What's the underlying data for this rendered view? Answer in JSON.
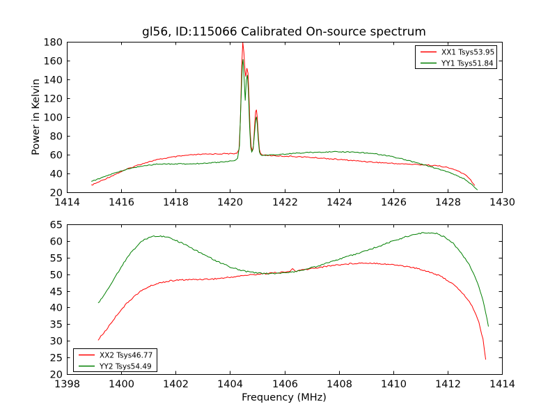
{
  "title": "gl56, ID:115066 Calibrated On-source spectrum",
  "colors": {
    "xx_polarization": "#ff0000",
    "yy_polarization": "#007f00",
    "frame": "#000000",
    "background": "#ffffff"
  },
  "chart_data": [
    {
      "type": "line",
      "title": "gl56, ID:115066 Calibrated On-source spectrum",
      "xlabel": "",
      "ylabel": "Power in Kelvin",
      "xlim": [
        1414,
        1430
      ],
      "ylim": [
        20,
        180
      ],
      "xticks": [
        1414,
        1416,
        1418,
        1420,
        1422,
        1424,
        1426,
        1428,
        1430
      ],
      "yticks": [
        20,
        40,
        60,
        80,
        100,
        120,
        140,
        160,
        180
      ],
      "grid": false,
      "legend_position": "upper right",
      "series": [
        {
          "name": "XX1",
          "label": "XX1 Tsys53.95",
          "color": "#ff0000",
          "noise": 0.55,
          "points": [
            [
              1414.9,
              27.5
            ],
            [
              1415.1,
              30.0
            ],
            [
              1415.4,
              34.0
            ],
            [
              1415.7,
              38.0
            ],
            [
              1416.0,
              42.0
            ],
            [
              1416.3,
              45.5
            ],
            [
              1416.6,
              48.8
            ],
            [
              1416.9,
              51.5
            ],
            [
              1417.2,
              53.8
            ],
            [
              1417.5,
              55.6
            ],
            [
              1417.8,
              57.0
            ],
            [
              1418.1,
              58.2
            ],
            [
              1418.4,
              59.2
            ],
            [
              1418.7,
              59.9
            ],
            [
              1419.0,
              60.4
            ],
            [
              1419.4,
              60.8
            ],
            [
              1419.8,
              61.0
            ],
            [
              1420.1,
              61.0
            ],
            [
              1420.25,
              61.5
            ],
            [
              1420.33,
              66.0
            ],
            [
              1420.38,
              95.0
            ],
            [
              1420.43,
              155.0
            ],
            [
              1420.47,
              179.0
            ],
            [
              1420.51,
              168.0
            ],
            [
              1420.55,
              149.0
            ],
            [
              1420.58,
              143.0
            ],
            [
              1420.62,
              152.0
            ],
            [
              1420.66,
              147.0
            ],
            [
              1420.7,
              120.0
            ],
            [
              1420.74,
              85.0
            ],
            [
              1420.78,
              68.0
            ],
            [
              1420.82,
              64.0
            ],
            [
              1420.86,
              70.0
            ],
            [
              1420.9,
              88.0
            ],
            [
              1420.94,
              105.0
            ],
            [
              1420.97,
              108.0
            ],
            [
              1421.0,
              100.0
            ],
            [
              1421.04,
              80.0
            ],
            [
              1421.08,
              66.0
            ],
            [
              1421.12,
              61.0
            ],
            [
              1421.2,
              59.8
            ],
            [
              1421.4,
              59.2
            ],
            [
              1421.7,
              58.8
            ],
            [
              1422.0,
              58.4
            ],
            [
              1422.4,
              58.0
            ],
            [
              1422.8,
              57.4
            ],
            [
              1423.2,
              56.6
            ],
            [
              1423.6,
              55.8
            ],
            [
              1424.0,
              54.9
            ],
            [
              1424.4,
              54.0
            ],
            [
              1424.8,
              53.1
            ],
            [
              1425.2,
              52.2
            ],
            [
              1425.6,
              51.4
            ],
            [
              1426.0,
              50.7
            ],
            [
              1426.4,
              50.1
            ],
            [
              1426.8,
              49.6
            ],
            [
              1427.2,
              49.1
            ],
            [
              1427.5,
              48.5
            ],
            [
              1427.8,
              47.5
            ],
            [
              1428.1,
              45.5
            ],
            [
              1428.4,
              42.5
            ],
            [
              1428.65,
              38.5
            ],
            [
              1428.85,
              33.0
            ],
            [
              1429.0,
              27.0
            ]
          ]
        },
        {
          "name": "YY1",
          "label": "YY1 Tsys51.84",
          "color": "#007f00",
          "noise": 0.5,
          "points": [
            [
              1414.9,
              31.5
            ],
            [
              1415.2,
              34.5
            ],
            [
              1415.5,
              37.8
            ],
            [
              1415.8,
              40.8
            ],
            [
              1416.1,
              43.5
            ],
            [
              1416.4,
              45.8
            ],
            [
              1416.7,
              47.6
            ],
            [
              1417.0,
              48.9
            ],
            [
              1417.3,
              49.7
            ],
            [
              1417.6,
              50.1
            ],
            [
              1418.0,
              50.2
            ],
            [
              1418.4,
              50.2
            ],
            [
              1418.8,
              50.5
            ],
            [
              1419.2,
              51.2
            ],
            [
              1419.6,
              52.0
            ],
            [
              1419.9,
              52.8
            ],
            [
              1420.15,
              53.8
            ],
            [
              1420.28,
              56.0
            ],
            [
              1420.35,
              70.0
            ],
            [
              1420.4,
              115.0
            ],
            [
              1420.45,
              155.0
            ],
            [
              1420.48,
              161.0
            ],
            [
              1420.52,
              140.0
            ],
            [
              1420.56,
              118.0
            ],
            [
              1420.6,
              140.0
            ],
            [
              1420.64,
              145.0
            ],
            [
              1420.68,
              125.0
            ],
            [
              1420.72,
              90.0
            ],
            [
              1420.76,
              68.0
            ],
            [
              1420.8,
              62.5
            ],
            [
              1420.85,
              66.0
            ],
            [
              1420.9,
              82.0
            ],
            [
              1420.94,
              97.0
            ],
            [
              1420.97,
              100.0
            ],
            [
              1421.0,
              93.0
            ],
            [
              1421.04,
              75.0
            ],
            [
              1421.08,
              63.0
            ],
            [
              1421.12,
              59.8
            ],
            [
              1421.25,
              59.3
            ],
            [
              1421.5,
              59.6
            ],
            [
              1421.8,
              60.2
            ],
            [
              1422.2,
              61.0
            ],
            [
              1422.6,
              61.8
            ],
            [
              1423.0,
              62.4
            ],
            [
              1423.4,
              62.8
            ],
            [
              1423.8,
              63.0
            ],
            [
              1424.2,
              63.0
            ],
            [
              1424.6,
              62.6
            ],
            [
              1425.0,
              61.8
            ],
            [
              1425.4,
              60.6
            ],
            [
              1425.8,
              58.8
            ],
            [
              1426.2,
              56.4
            ],
            [
              1426.6,
              53.4
            ],
            [
              1427.0,
              50.2
            ],
            [
              1427.4,
              47.0
            ],
            [
              1427.8,
              43.5
            ],
            [
              1428.2,
              39.5
            ],
            [
              1428.6,
              34.5
            ],
            [
              1428.9,
              28.0
            ],
            [
              1429.1,
              22.0
            ]
          ]
        }
      ]
    },
    {
      "type": "line",
      "title": "",
      "xlabel": "Frequency (MHz)",
      "ylabel": "",
      "xlim": [
        1398,
        1414
      ],
      "ylim": [
        20,
        65
      ],
      "xticks": [
        1398,
        1400,
        1402,
        1404,
        1406,
        1408,
        1410,
        1412,
        1414
      ],
      "yticks": [
        20,
        25,
        30,
        35,
        40,
        45,
        50,
        55,
        60,
        65
      ],
      "grid": false,
      "legend_position": "lower left",
      "series": [
        {
          "name": "XX2",
          "label": "XX2 Tsys46.77",
          "color": "#ff0000",
          "noise": 0.2,
          "points": [
            [
              1399.15,
              30.3
            ],
            [
              1399.45,
              33.3
            ],
            [
              1399.7,
              36.2
            ],
            [
              1399.95,
              38.9
            ],
            [
              1400.2,
              41.2
            ],
            [
              1400.45,
              43.2
            ],
            [
              1400.7,
              44.8
            ],
            [
              1400.95,
              46.0
            ],
            [
              1401.2,
              46.9
            ],
            [
              1401.5,
              47.6
            ],
            [
              1401.8,
              48.0
            ],
            [
              1402.2,
              48.3
            ],
            [
              1402.6,
              48.4
            ],
            [
              1403.0,
              48.5
            ],
            [
              1403.4,
              48.6
            ],
            [
              1403.8,
              48.9
            ],
            [
              1404.2,
              49.3
            ],
            [
              1404.6,
              49.7
            ],
            [
              1405.0,
              50.0
            ],
            [
              1405.4,
              50.3
            ],
            [
              1405.8,
              50.5
            ],
            [
              1406.2,
              50.8
            ],
            [
              1406.3,
              51.7
            ],
            [
              1406.4,
              50.9
            ],
            [
              1406.6,
              51.2
            ],
            [
              1407.0,
              51.7
            ],
            [
              1407.4,
              52.2
            ],
            [
              1407.8,
              52.7
            ],
            [
              1408.2,
              53.0
            ],
            [
              1408.6,
              53.3
            ],
            [
              1409.0,
              53.4
            ],
            [
              1409.4,
              53.3
            ],
            [
              1409.8,
              53.0
            ],
            [
              1410.2,
              52.7
            ],
            [
              1410.6,
              52.2
            ],
            [
              1411.0,
              51.5
            ],
            [
              1411.3,
              50.8
            ],
            [
              1411.6,
              49.9
            ],
            [
              1411.9,
              48.7
            ],
            [
              1412.2,
              47.0
            ],
            [
              1412.5,
              44.8
            ],
            [
              1412.8,
              41.8
            ],
            [
              1413.0,
              38.8
            ],
            [
              1413.15,
              35.5
            ],
            [
              1413.3,
              30.5
            ],
            [
              1413.4,
              24.5
            ]
          ]
        },
        {
          "name": "YY2",
          "label": "YY2 Tsys54.49",
          "color": "#007f00",
          "noise": 0.2,
          "points": [
            [
              1399.15,
              41.3
            ],
            [
              1399.4,
              44.0
            ],
            [
              1399.6,
              46.8
            ],
            [
              1399.8,
              49.5
            ],
            [
              1400.0,
              52.2
            ],
            [
              1400.2,
              54.7
            ],
            [
              1400.4,
              56.9
            ],
            [
              1400.6,
              58.7
            ],
            [
              1400.8,
              60.1
            ],
            [
              1401.0,
              61.0
            ],
            [
              1401.2,
              61.5
            ],
            [
              1401.45,
              61.5
            ],
            [
              1401.7,
              61.1
            ],
            [
              1402.0,
              60.2
            ],
            [
              1402.3,
              59.1
            ],
            [
              1402.6,
              57.8
            ],
            [
              1402.9,
              56.5
            ],
            [
              1403.2,
              55.2
            ],
            [
              1403.5,
              54.0
            ],
            [
              1403.8,
              52.9
            ],
            [
              1404.1,
              51.9
            ],
            [
              1404.4,
              51.2
            ],
            [
              1404.7,
              50.7
            ],
            [
              1405.0,
              50.4
            ],
            [
              1405.3,
              50.2
            ],
            [
              1405.6,
              50.2
            ],
            [
              1405.9,
              50.3
            ],
            [
              1406.2,
              50.6
            ],
            [
              1406.5,
              51.0
            ],
            [
              1406.8,
              51.5
            ],
            [
              1407.2,
              52.4
            ],
            [
              1407.6,
              53.5
            ],
            [
              1408.0,
              54.5
            ],
            [
              1408.4,
              55.5
            ],
            [
              1408.8,
              56.5
            ],
            [
              1409.2,
              57.6
            ],
            [
              1409.6,
              58.8
            ],
            [
              1410.0,
              60.0
            ],
            [
              1410.4,
              61.1
            ],
            [
              1410.7,
              61.8
            ],
            [
              1411.0,
              62.3
            ],
            [
              1411.3,
              62.5
            ],
            [
              1411.6,
              62.2
            ],
            [
              1411.9,
              61.2
            ],
            [
              1412.2,
              59.3
            ],
            [
              1412.5,
              56.5
            ],
            [
              1412.8,
              52.8
            ],
            [
              1413.0,
              49.5
            ],
            [
              1413.2,
              45.0
            ],
            [
              1413.35,
              40.5
            ],
            [
              1413.5,
              34.5
            ]
          ]
        }
      ]
    }
  ]
}
